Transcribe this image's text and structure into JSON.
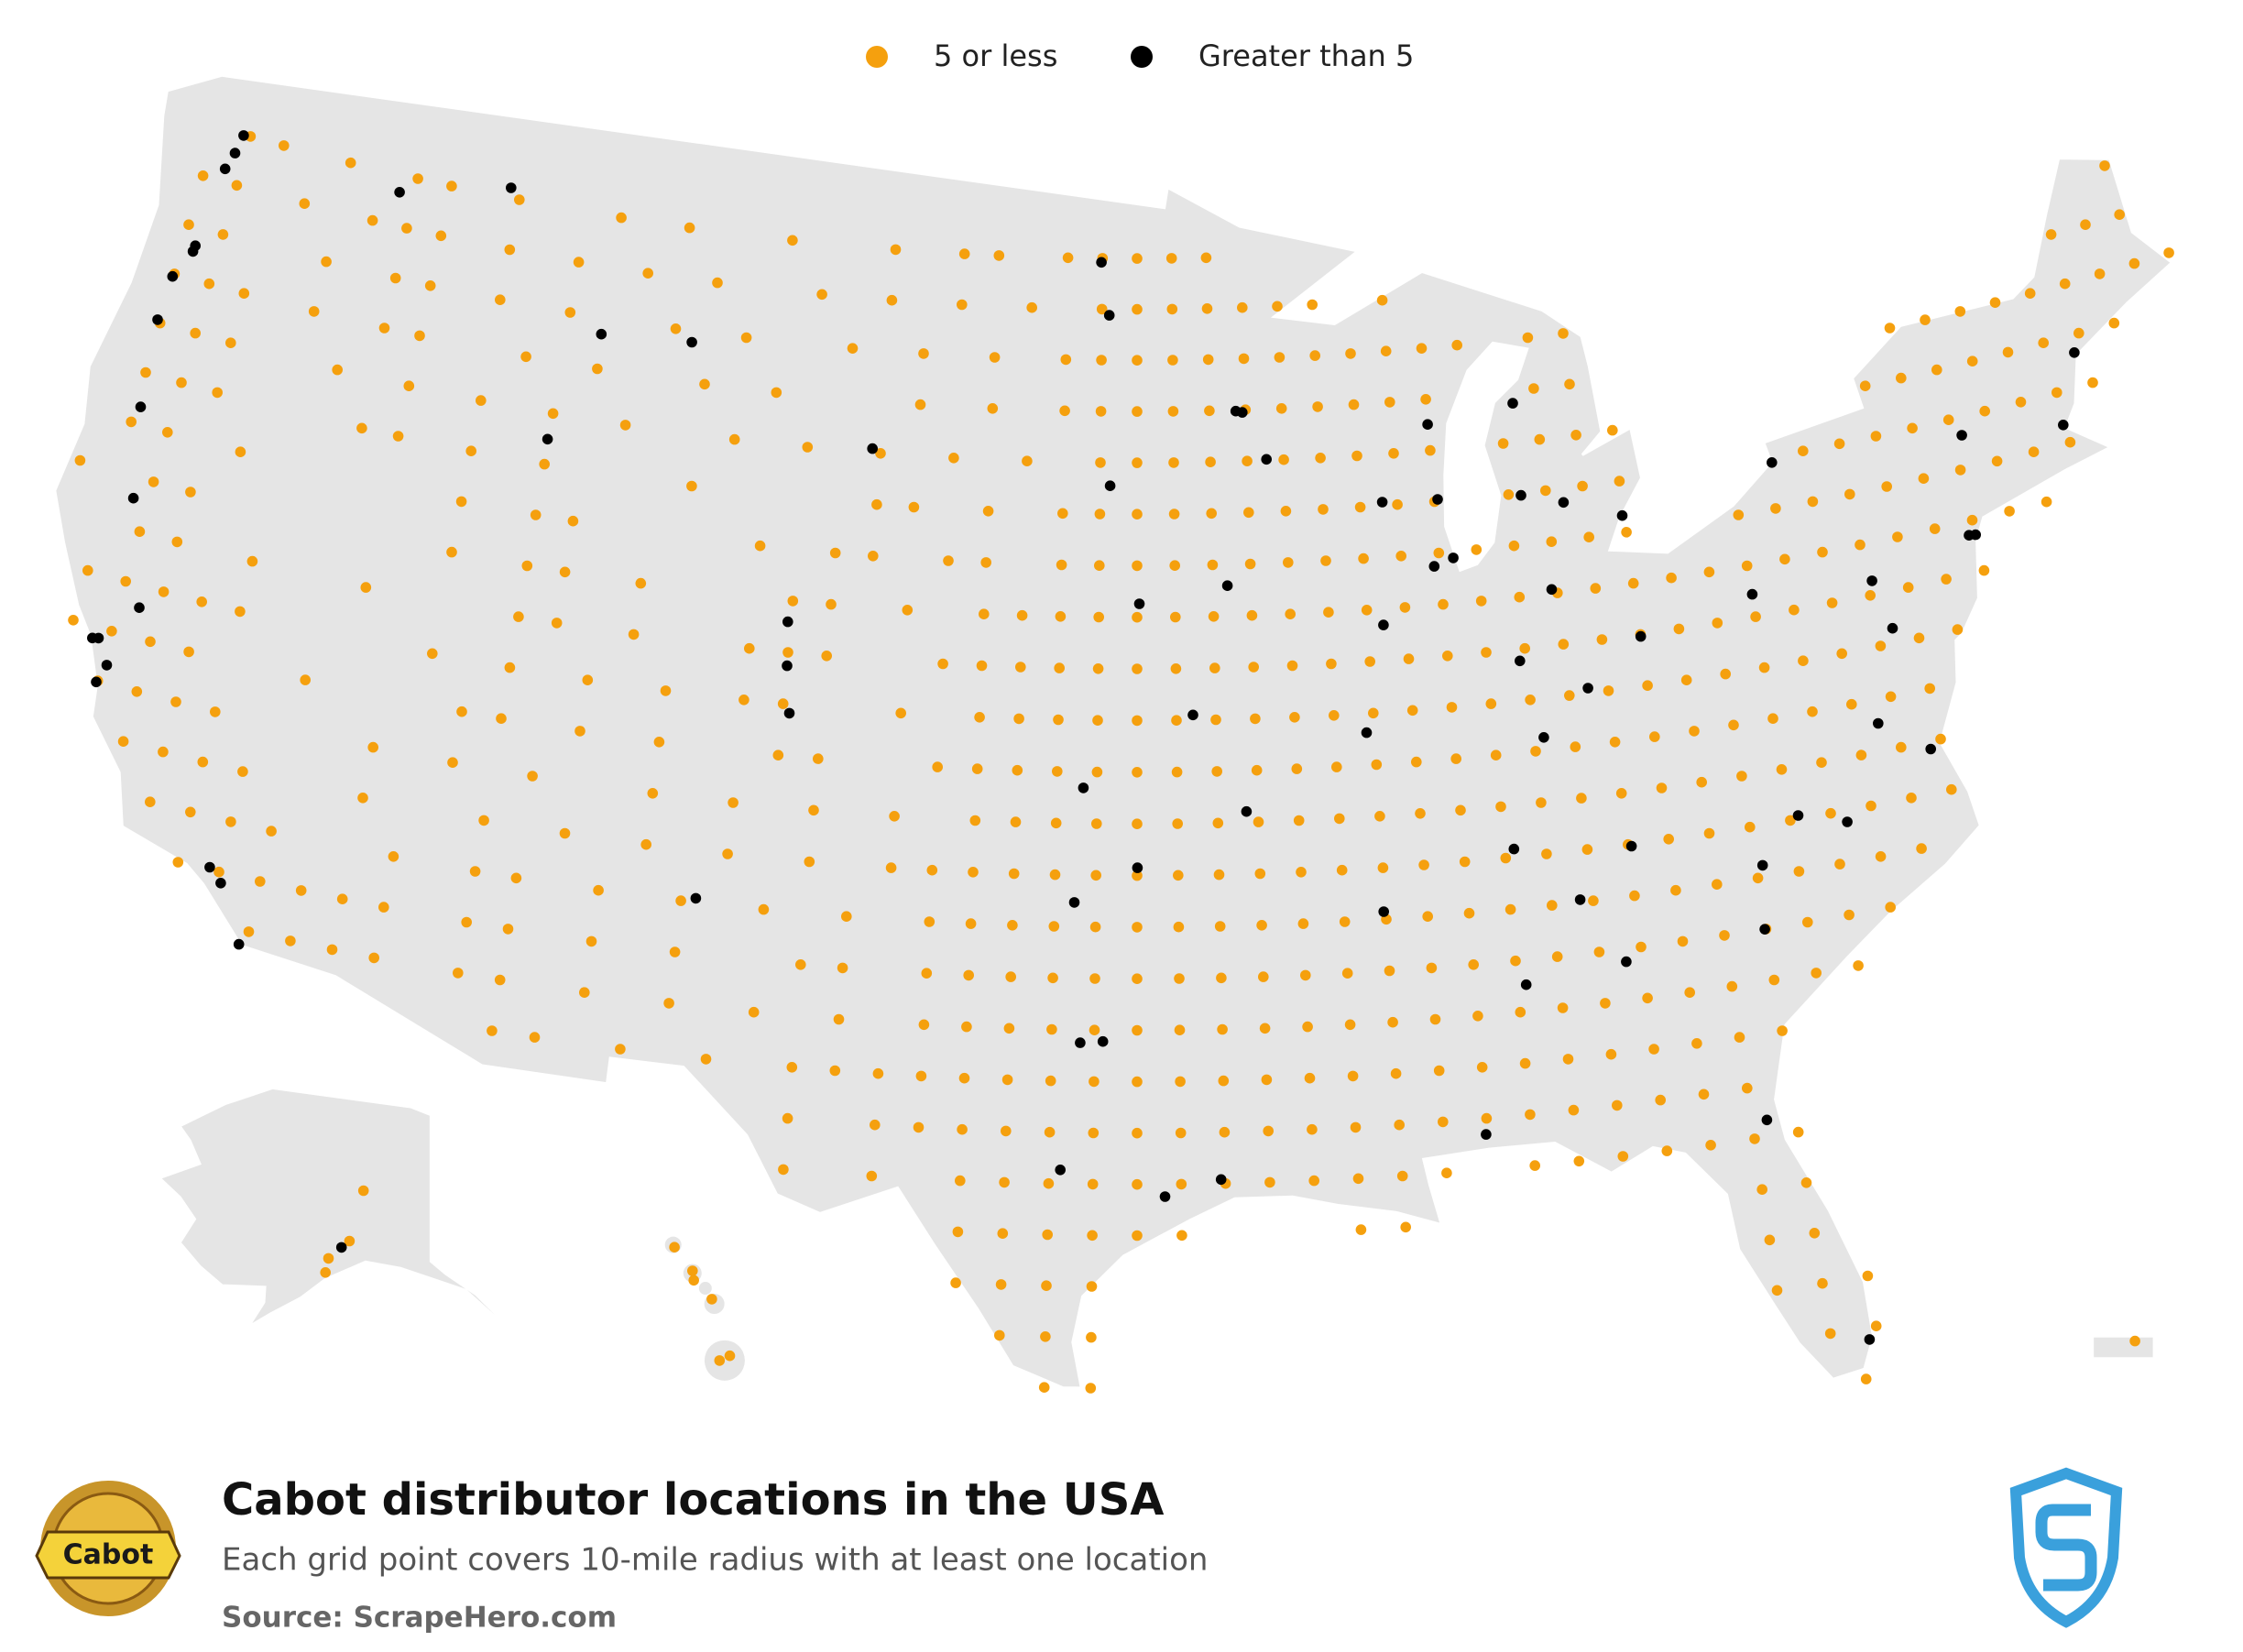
{
  "legend": {
    "items": [
      {
        "label": "5 or less",
        "color": "#f5a00e"
      },
      {
        "label": "Greater than 5",
        "color": "#000000"
      }
    ]
  },
  "footer": {
    "title": "Cabot distributor locations in the USA",
    "subtitle": "Each grid point covers 10-mile radius with at least one location",
    "source": "Source: ScrapeHero.com",
    "logo_text": "Cabot"
  },
  "locations": {
    "five_or_less_rows": [
      {
        "lat": 48,
        "lon": [
          -122,
          -121,
          -119,
          -117,
          -116,
          -114,
          -111,
          -109,
          -106,
          -103,
          -101,
          -100,
          -98,
          -97,
          -96,
          -95,
          -94
        ]
      },
      {
        "lat": 47,
        "lon": [
          -123,
          -122,
          -120,
          -118,
          -117,
          -116,
          -114,
          -112,
          -110,
          -108,
          -105,
          -103,
          -101,
          -99,
          -97,
          -96,
          -95,
          -94,
          -93,
          -92,
          -91,
          -89,
          -68
        ]
      },
      {
        "lat": 46,
        "lon": [
          -123,
          -122,
          -119,
          -117,
          -116,
          -114,
          -112,
          -109,
          -107,
          -104,
          -102,
          -100,
          -98,
          -97,
          -96,
          -95,
          -94,
          -93,
          -92,
          -91,
          -90,
          -89,
          -88,
          -87,
          -85,
          -84,
          -70,
          -69,
          -68
        ]
      },
      {
        "lat": 45,
        "lon": [
          -123,
          -122,
          -121,
          -119,
          -117,
          -116,
          -113,
          -111,
          -108,
          -106,
          -102,
          -100,
          -98,
          -97,
          -96,
          -95,
          -94,
          -93,
          -92,
          -91,
          -90,
          -89,
          -88,
          -85,
          -84,
          -75,
          -74,
          -73,
          -72,
          -71,
          -70,
          -69,
          -68,
          -67
        ]
      },
      {
        "lat": 44,
        "lon": [
          -123,
          -122,
          -121,
          -118,
          -116,
          -114,
          -112,
          -110,
          -107,
          -105,
          -103,
          -101,
          -99,
          -97,
          -96,
          -95,
          -94,
          -93,
          -92,
          -91,
          -90,
          -89,
          -88,
          -86,
          -85,
          -84,
          -83,
          -76,
          -75,
          -74,
          -73,
          -72,
          -71,
          -70,
          -69
        ]
      },
      {
        "lat": 43,
        "lon": [
          -123,
          -122,
          -121,
          -117,
          -116,
          -114,
          -112,
          -108,
          -103,
          -102,
          -100,
          -98,
          -97,
          -96,
          -95,
          -94,
          -93,
          -92,
          -91,
          -90,
          -89,
          -88,
          -86,
          -85,
          -84,
          -83,
          -78,
          -77,
          -76,
          -75,
          -74,
          -73,
          -72,
          -71,
          -70
        ]
      },
      {
        "lat": 42,
        "lon": [
          -123,
          -122,
          -120,
          -114,
          -112,
          -111,
          -106,
          -104,
          -103,
          -101,
          -100,
          -98,
          -97,
          -96,
          -95,
          -94,
          -93,
          -92,
          -91,
          -90,
          -89,
          -88,
          -87,
          -86,
          -85,
          -84,
          -83,
          -80,
          -79,
          -78,
          -77,
          -76,
          -75,
          -74,
          -73,
          -72,
          -71
        ]
      },
      {
        "lat": 41,
        "lon": [
          -124,
          -122,
          -121,
          -114,
          -112,
          -111,
          -109,
          -105,
          -104,
          -102,
          -100,
          -99,
          -98,
          -97,
          -96,
          -95,
          -94,
          -93,
          -92,
          -91,
          -90,
          -89,
          -88,
          -87,
          -86,
          -85,
          -84,
          -83,
          -82,
          -81,
          -80,
          -79,
          -78,
          -77,
          -76,
          -75,
          -74,
          -73,
          -72
        ]
      },
      {
        "lat": 40,
        "lon": [
          -122,
          -121,
          -119,
          -116,
          -112,
          -111,
          -109,
          -106,
          -105,
          -104,
          -101,
          -100,
          -99,
          -98,
          -97,
          -96,
          -95,
          -94,
          -93,
          -92,
          -91,
          -90,
          -89,
          -88,
          -87,
          -86,
          -85,
          -84,
          -83,
          -82,
          -81,
          -80,
          -79,
          -78,
          -77,
          -76,
          -75,
          -74
        ]
      },
      {
        "lat": 39,
        "lon": [
          -123,
          -122,
          -121,
          -120,
          -119,
          -114,
          -112,
          -110,
          -108,
          -106,
          -105,
          -102,
          -100,
          -99,
          -98,
          -97,
          -96,
          -95,
          -94,
          -93,
          -92,
          -91,
          -90,
          -89,
          -88,
          -87,
          -86,
          -85,
          -84,
          -83,
          -82,
          -81,
          -80,
          -79,
          -78,
          -77,
          -76,
          -75
        ]
      },
      {
        "lat": 38,
        "lon": [
          -123,
          -122,
          -121,
          -120,
          -117,
          -113,
          -112,
          -110,
          -108,
          -105,
          -104,
          -101,
          -100,
          -99,
          -98,
          -97,
          -96,
          -95,
          -94,
          -93,
          -92,
          -91,
          -90,
          -89,
          -88,
          -87,
          -86,
          -85,
          -84,
          -83,
          -82,
          -81,
          -80,
          -79,
          -78,
          -77,
          -76
        ]
      },
      {
        "lat": 37,
        "lon": [
          -122,
          -121,
          -120,
          -119,
          -115,
          -113,
          -111,
          -108,
          -106,
          -104,
          -102,
          -100,
          -99,
          -98,
          -97,
          -96,
          -95,
          -94,
          -93,
          -92,
          -91,
          -90,
          -89,
          -88,
          -87,
          -86,
          -85,
          -84,
          -83,
          -82,
          -81,
          -80,
          -79,
          -78,
          -77,
          -76
        ]
      },
      {
        "lat": 36,
        "lon": [
          -121,
          -120,
          -119,
          -118,
          -115,
          -112,
          -110,
          -108,
          -106,
          -104,
          -102,
          -101,
          -100,
          -99,
          -98,
          -97,
          -96,
          -95,
          -94,
          -93,
          -92,
          -91,
          -90,
          -89,
          -88,
          -87,
          -86,
          -85,
          -84,
          -83,
          -82,
          -81,
          -80,
          -79,
          -78,
          -77,
          -76
        ]
      },
      {
        "lat": 35,
        "lon": [
          -120,
          -119,
          -118,
          -117,
          -114,
          -112,
          -111,
          -109,
          -107,
          -105,
          -103,
          -101,
          -100,
          -99,
          -98,
          -97,
          -96,
          -95,
          -94,
          -93,
          -92,
          -91,
          -90,
          -89,
          -88,
          -87,
          -86,
          -85,
          -84,
          -83,
          -82,
          -81,
          -80,
          -79,
          -78,
          -77
        ]
      },
      {
        "lat": 34,
        "lon": [
          -119,
          -118,
          -117,
          -116,
          -115,
          -114,
          -112,
          -111,
          -109,
          -107,
          -104,
          -103,
          -101,
          -100,
          -99,
          -98,
          -97,
          -96,
          -95,
          -94,
          -93,
          -92,
          -91,
          -90,
          -89,
          -88,
          -87,
          -86,
          -85,
          -84,
          -83,
          -82,
          -81,
          -80,
          -79,
          -78
        ]
      },
      {
        "lat": 33,
        "lon": [
          -117,
          -116,
          -115,
          -114,
          -112,
          -111,
          -109,
          -107,
          -105,
          -103,
          -101,
          -100,
          -99,
          -98,
          -97,
          -96,
          -95,
          -94,
          -93,
          -92,
          -91,
          -90,
          -89,
          -88,
          -87,
          -86,
          -85,
          -84,
          -83,
          -82,
          -81,
          -80,
          -79
        ]
      },
      {
        "lat": 32,
        "lon": [
          -111,
          -110,
          -108,
          -106,
          -104,
          -103,
          -102,
          -101,
          -100,
          -99,
          -98,
          -97,
          -96,
          -95,
          -94,
          -93,
          -92,
          -91,
          -90,
          -89,
          -88,
          -87,
          -86,
          -85,
          -84,
          -83,
          -82,
          -81
        ]
      },
      {
        "lat": 31,
        "lon": [
          -104,
          -102,
          -101,
          -100,
          -99,
          -98,
          -97,
          -96,
          -95,
          -94,
          -93,
          -92,
          -91,
          -90,
          -89,
          -88,
          -87,
          -86,
          -85,
          -84,
          -83,
          -82
        ]
      },
      {
        "lat": 30,
        "lon": [
          -104,
          -102,
          -100,
          -99,
          -98,
          -97,
          -96,
          -95,
          -94,
          -93,
          -92,
          -91,
          -90,
          -89,
          -87,
          -86,
          -85,
          -84,
          -83,
          -82,
          -81
        ]
      },
      {
        "lat": 29,
        "lon": [
          -100,
          -99,
          -98,
          -97,
          -96,
          -95,
          -91,
          -90,
          -82,
          -81
        ]
      },
      {
        "lat": 28,
        "lon": [
          -100,
          -99,
          -98,
          -97,
          -82,
          -81
        ]
      },
      {
        "lat": 27,
        "lon": [
          -99,
          -98,
          -97,
          -82,
          -81,
          -80
        ]
      },
      {
        "lat": 26,
        "lon": [
          -98,
          -97,
          -81,
          -80
        ]
      },
      {
        "lat": 25,
        "lon": [
          -80.4
        ]
      }
    ],
    "greater_than_5": [
      [
        47.6,
        -122.3
      ],
      [
        47.25,
        -122.45
      ],
      [
        47.98,
        -122.2
      ],
      [
        45.52,
        -122.68
      ],
      [
        45.64,
        -122.66
      ],
      [
        44.94,
        -123.03
      ],
      [
        47.66,
        -117.43
      ],
      [
        48.2,
        -114.3
      ],
      [
        45.68,
        -111.04
      ],
      [
        45.78,
        -108.5
      ],
      [
        44.05,
        -123.09
      ],
      [
        42.33,
        -122.87
      ],
      [
        40.59,
        -122.39
      ],
      [
        38.58,
        -121.49
      ],
      [
        37.77,
        -122.42
      ],
      [
        37.8,
        -122.27
      ],
      [
        37.34,
        -121.89
      ],
      [
        36.97,
        -122.03
      ],
      [
        34.05,
        -118.24
      ],
      [
        33.8,
        -117.9
      ],
      [
        32.72,
        -117.16
      ],
      [
        43.49,
        -112.03
      ],
      [
        39.74,
        -104.99
      ],
      [
        38.83,
        -104.82
      ],
      [
        40.59,
        -105.08
      ],
      [
        35.08,
        -106.65
      ],
      [
        44.08,
        -103.23
      ],
      [
        46.88,
        -96.79
      ],
      [
        47.92,
        -97.03
      ],
      [
        43.55,
        -96.73
      ],
      [
        44.98,
        -93.27
      ],
      [
        44.95,
        -93.09
      ],
      [
        44.02,
        -92.47
      ],
      [
        41.26,
        -95.94
      ],
      [
        41.59,
        -93.62
      ],
      [
        39.1,
        -94.58
      ],
      [
        37.69,
        -97.34
      ],
      [
        36.15,
        -95.99
      ],
      [
        35.47,
        -97.52
      ],
      [
        32.78,
        -96.8
      ],
      [
        32.75,
        -97.33
      ],
      [
        30.27,
        -97.74
      ],
      [
        29.76,
        -95.37
      ],
      [
        30.08,
        -94.1
      ],
      [
        43.04,
        -87.91
      ],
      [
        43.07,
        -89.4
      ],
      [
        44.51,
        -88.01
      ],
      [
        41.88,
        -87.63
      ],
      [
        41.75,
        -88.15
      ],
      [
        40.69,
        -89.59
      ],
      [
        38.63,
        -90.2
      ],
      [
        37.21,
        -93.29
      ],
      [
        42.96,
        -85.67
      ],
      [
        42.73,
        -84.56
      ],
      [
        42.33,
        -83.05
      ],
      [
        44.76,
        -85.62
      ],
      [
        41.08,
        -85.14
      ],
      [
        39.77,
        -86.16
      ],
      [
        39.1,
        -84.51
      ],
      [
        39.96,
        -83.0
      ],
      [
        38.25,
        -85.76
      ],
      [
        36.16,
        -86.78
      ],
      [
        35.15,
        -90.05
      ],
      [
        35.05,
        -85.31
      ],
      [
        33.75,
        -84.39
      ],
      [
        33.52,
        -86.8
      ],
      [
        35.96,
        -83.92
      ],
      [
        35.23,
        -80.84
      ],
      [
        35.78,
        -78.64
      ],
      [
        36.07,
        -79.79
      ],
      [
        34.0,
        -81.03
      ],
      [
        40.44,
        -79.99
      ],
      [
        40.27,
        -76.88
      ],
      [
        39.29,
        -76.61
      ],
      [
        37.54,
        -77.44
      ],
      [
        36.85,
        -76.29
      ],
      [
        42.89,
        -78.88
      ],
      [
        42.65,
        -73.75
      ],
      [
        40.71,
        -74.0
      ],
      [
        40.73,
        -74.17
      ],
      [
        42.36,
        -71.06
      ],
      [
        43.66,
        -70.26
      ],
      [
        30.33,
        -81.66
      ],
      [
        25.76,
        -80.19
      ],
      [
        30.69,
        -88.04
      ]
    ],
    "alaska": {
      "five_or_less": [
        [
          61.6,
          -149.1
        ],
        [
          60.5,
          -151.2
        ],
        [
          64.8,
          -147.7
        ],
        [
          59.6,
          -151.5
        ]
      ],
      "greater_than_5": [
        [
          61.2,
          -149.9
        ]
      ]
    },
    "hawaii": {
      "five_or_less": [
        [
          21.3,
          -157.9
        ],
        [
          21.5,
          -158.0
        ],
        [
          20.9,
          -156.5
        ],
        [
          19.7,
          -155.1
        ],
        [
          19.6,
          -155.9
        ],
        [
          22.0,
          -159.4
        ]
      ]
    },
    "puerto_rico": {
      "five_or_less": [
        [
          18.4,
          -66.1
        ]
      ]
    }
  }
}
